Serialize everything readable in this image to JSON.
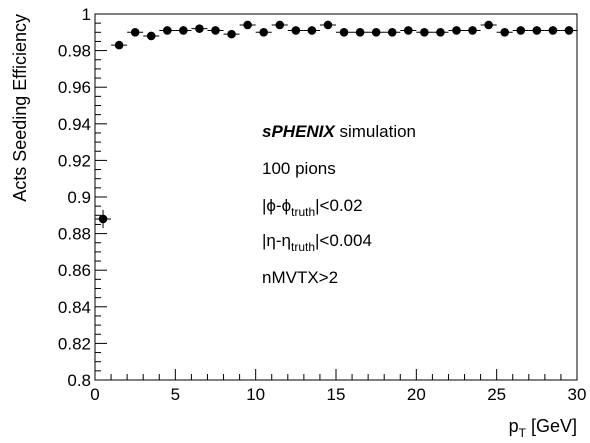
{
  "chart_data": {
    "type": "scatter",
    "xlabel": "p",
    "xlabel_sub": "T",
    "xlabel_unit": " [GeV]",
    "ylabel": "Acts Seeding Efficiency",
    "xlim": [
      0,
      30
    ],
    "ylim": [
      0.8,
      1.0
    ],
    "x_ticks": [
      0,
      5,
      10,
      15,
      20,
      25,
      30
    ],
    "y_ticks": [
      0.8,
      0.82,
      0.84,
      0.86,
      0.88,
      0.9,
      0.92,
      0.94,
      0.96,
      0.98,
      1
    ],
    "x_tick_labels": [
      "0",
      "5",
      "10",
      "15",
      "20",
      "25",
      "30"
    ],
    "y_tick_labels": [
      "0.8",
      "0.82",
      "0.84",
      "0.86",
      "0.88",
      "0.9",
      "0.92",
      "0.94",
      "0.96",
      "0.98",
      "1"
    ],
    "grid": false,
    "series": [
      {
        "x": [
          0.5,
          1.5,
          2.5,
          3.5,
          4.5,
          5.5,
          6.5,
          7.5,
          8.5,
          9.5,
          10.5,
          11.5,
          12.5,
          13.5,
          14.5,
          15.5,
          16.5,
          17.5,
          18.5,
          19.5,
          20.5,
          21.5,
          22.5,
          23.5,
          24.5,
          25.5,
          26.5,
          27.5,
          28.5,
          29.5
        ],
        "y": [
          0.888,
          0.983,
          0.99,
          0.988,
          0.991,
          0.991,
          0.992,
          0.991,
          0.989,
          0.994,
          0.99,
          0.994,
          0.991,
          0.991,
          0.994,
          0.99,
          0.99,
          0.99,
          0.99,
          0.991,
          0.99,
          0.99,
          0.991,
          0.991,
          0.994,
          0.99,
          0.991,
          0.991,
          0.991,
          0.991
        ],
        "yerr": [
          0.005,
          0.002,
          0.001,
          0.001,
          0.001,
          0.001,
          0.001,
          0.001,
          0.001,
          0.001,
          0.001,
          0.001,
          0.001,
          0.001,
          0.001,
          0.001,
          0.001,
          0.001,
          0.001,
          0.001,
          0.001,
          0.001,
          0.001,
          0.001,
          0.001,
          0.001,
          0.001,
          0.001,
          0.001,
          0.001
        ]
      }
    ],
    "annotations": {
      "experiment": "sPHENIX",
      "label": " simulation",
      "line1": "100 pions",
      "line2_pre": "|ϕ-ϕ",
      "line2_sub": "truth",
      "line2_post": "|<0.02",
      "line3_pre": "|η-η",
      "line3_sub": "truth",
      "line3_post": "|<0.004",
      "line4": "nMVTX>2"
    }
  }
}
